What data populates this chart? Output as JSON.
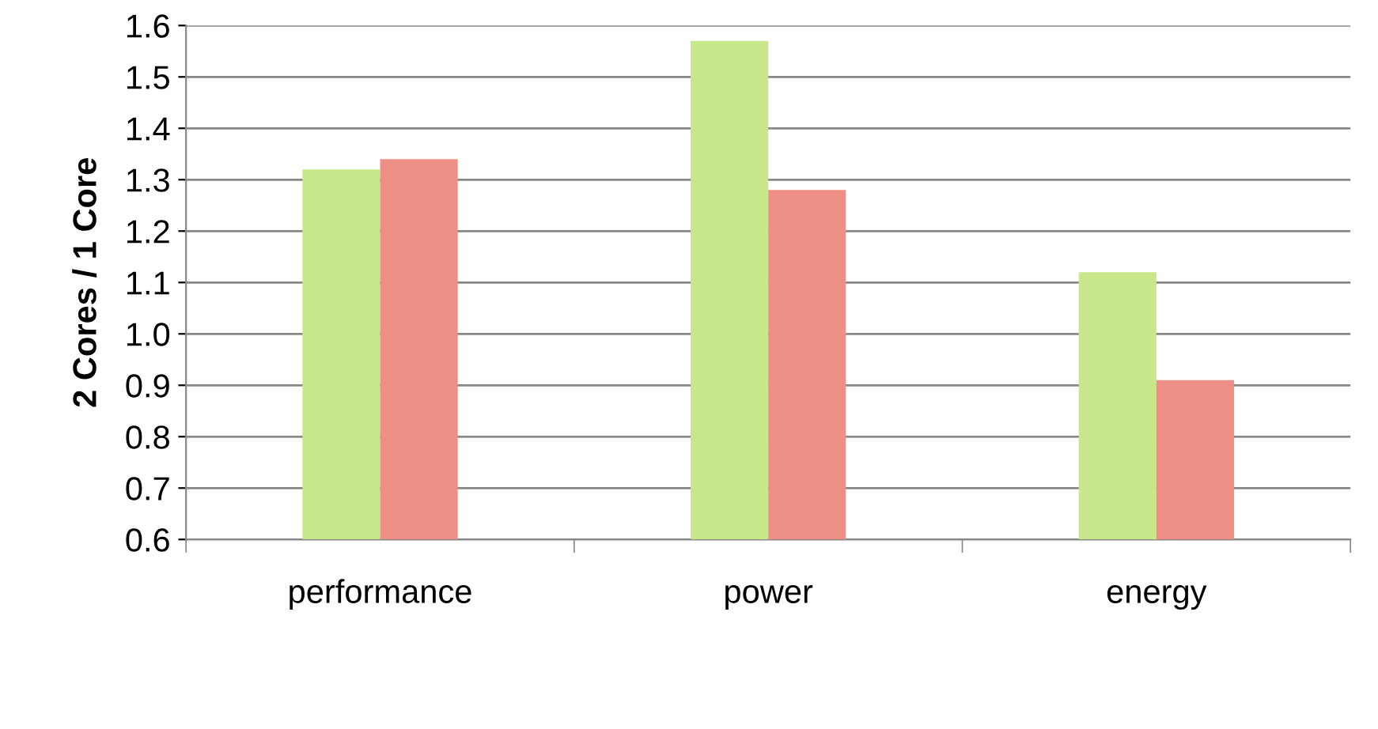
{
  "chart_data": {
    "type": "bar",
    "ylabel": "2 Cores / 1 Core",
    "categories": [
      "performance",
      "power",
      "energy"
    ],
    "series": [
      {
        "color": "#c8e68a",
        "values": [
          1.32,
          1.57,
          1.12
        ]
      },
      {
        "color": "#ee8f86",
        "values": [
          1.34,
          1.28,
          0.91
        ]
      }
    ],
    "ylim": [
      0.6,
      1.6
    ],
    "yticks": [
      0.6,
      0.7,
      0.8,
      0.9,
      {
        "value": 1.0,
        "label": "1.0"
      },
      1.1,
      1.2,
      1.3,
      1.4,
      1.5,
      1.6
    ],
    "grid": "y"
  }
}
